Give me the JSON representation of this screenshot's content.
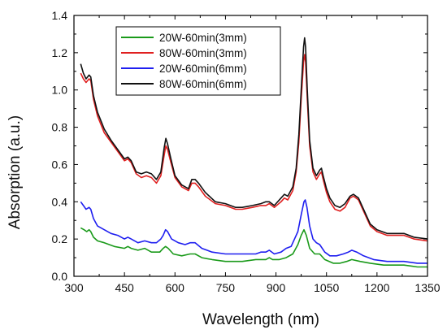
{
  "chart_data": {
    "type": "line",
    "title": "",
    "xlabel": "Wavelength (nm)",
    "ylabel": "Absorption (a.u.)",
    "xlim": [
      300,
      1350
    ],
    "ylim": [
      0.0,
      1.4
    ],
    "x_ticks": [
      300,
      450,
      600,
      750,
      900,
      1050,
      1200,
      1350
    ],
    "y_ticks": [
      0.0,
      0.2,
      0.4,
      0.6,
      0.8,
      1.0,
      1.2,
      1.4
    ],
    "x_tick_labels": [
      "300",
      "450",
      "600",
      "750",
      "900",
      "1050",
      "1200",
      "1350"
    ],
    "y_tick_labels": [
      "0.0",
      "0.2",
      "0.4",
      "0.6",
      "0.8",
      "1.0",
      "1.2",
      "1.4"
    ],
    "grid": false,
    "legend_position": "top-center",
    "series": [
      {
        "name": "20W-60min(3mm)",
        "color": "#1a9a1a",
        "points": [
          [
            320,
            0.26
          ],
          [
            330,
            0.25
          ],
          [
            338,
            0.24
          ],
          [
            345,
            0.25
          ],
          [
            350,
            0.24
          ],
          [
            358,
            0.21
          ],
          [
            370,
            0.19
          ],
          [
            390,
            0.18
          ],
          [
            420,
            0.16
          ],
          [
            450,
            0.15
          ],
          [
            460,
            0.16
          ],
          [
            470,
            0.15
          ],
          [
            490,
            0.14
          ],
          [
            510,
            0.15
          ],
          [
            530,
            0.13
          ],
          [
            555,
            0.13
          ],
          [
            565,
            0.15
          ],
          [
            572,
            0.16
          ],
          [
            580,
            0.15
          ],
          [
            595,
            0.12
          ],
          [
            620,
            0.11
          ],
          [
            645,
            0.12
          ],
          [
            660,
            0.12
          ],
          [
            680,
            0.1
          ],
          [
            710,
            0.09
          ],
          [
            750,
            0.08
          ],
          [
            800,
            0.08
          ],
          [
            840,
            0.09
          ],
          [
            855,
            0.09
          ],
          [
            870,
            0.09
          ],
          [
            880,
            0.1
          ],
          [
            890,
            0.09
          ],
          [
            910,
            0.09
          ],
          [
            930,
            0.1
          ],
          [
            950,
            0.12
          ],
          [
            965,
            0.17
          ],
          [
            975,
            0.22
          ],
          [
            983,
            0.25
          ],
          [
            990,
            0.22
          ],
          [
            1000,
            0.15
          ],
          [
            1015,
            0.12
          ],
          [
            1030,
            0.12
          ],
          [
            1045,
            0.09
          ],
          [
            1070,
            0.07
          ],
          [
            1090,
            0.07
          ],
          [
            1110,
            0.08
          ],
          [
            1125,
            0.09
          ],
          [
            1150,
            0.08
          ],
          [
            1180,
            0.07
          ],
          [
            1220,
            0.06
          ],
          [
            1280,
            0.06
          ],
          [
            1320,
            0.05
          ],
          [
            1350,
            0.05
          ]
        ]
      },
      {
        "name": "80W-60min(3mm)",
        "color": "#e02020",
        "points": [
          [
            320,
            1.09
          ],
          [
            328,
            1.06
          ],
          [
            336,
            1.04
          ],
          [
            345,
            1.06
          ],
          [
            350,
            1.05
          ],
          [
            358,
            0.95
          ],
          [
            370,
            0.86
          ],
          [
            390,
            0.77
          ],
          [
            410,
            0.72
          ],
          [
            430,
            0.67
          ],
          [
            450,
            0.62
          ],
          [
            460,
            0.63
          ],
          [
            470,
            0.61
          ],
          [
            485,
            0.55
          ],
          [
            500,
            0.53
          ],
          [
            515,
            0.54
          ],
          [
            530,
            0.53
          ],
          [
            545,
            0.5
          ],
          [
            558,
            0.54
          ],
          [
            568,
            0.65
          ],
          [
            573,
            0.7
          ],
          [
            578,
            0.68
          ],
          [
            588,
            0.61
          ],
          [
            600,
            0.53
          ],
          [
            620,
            0.48
          ],
          [
            640,
            0.46
          ],
          [
            650,
            0.5
          ],
          [
            660,
            0.5
          ],
          [
            670,
            0.48
          ],
          [
            690,
            0.43
          ],
          [
            720,
            0.39
          ],
          [
            750,
            0.38
          ],
          [
            780,
            0.36
          ],
          [
            800,
            0.36
          ],
          [
            830,
            0.37
          ],
          [
            855,
            0.38
          ],
          [
            870,
            0.38
          ],
          [
            880,
            0.39
          ],
          [
            895,
            0.37
          ],
          [
            915,
            0.4
          ],
          [
            925,
            0.42
          ],
          [
            935,
            0.41
          ],
          [
            950,
            0.46
          ],
          [
            960,
            0.56
          ],
          [
            968,
            0.72
          ],
          [
            975,
            0.95
          ],
          [
            982,
            1.15
          ],
          [
            985,
            1.19
          ],
          [
            988,
            1.15
          ],
          [
            993,
            0.95
          ],
          [
            1000,
            0.7
          ],
          [
            1010,
            0.56
          ],
          [
            1020,
            0.52
          ],
          [
            1030,
            0.55
          ],
          [
            1035,
            0.56
          ],
          [
            1040,
            0.52
          ],
          [
            1050,
            0.45
          ],
          [
            1060,
            0.4
          ],
          [
            1075,
            0.36
          ],
          [
            1090,
            0.35
          ],
          [
            1105,
            0.37
          ],
          [
            1120,
            0.42
          ],
          [
            1130,
            0.43
          ],
          [
            1145,
            0.41
          ],
          [
            1160,
            0.35
          ],
          [
            1180,
            0.27
          ],
          [
            1200,
            0.24
          ],
          [
            1230,
            0.22
          ],
          [
            1260,
            0.22
          ],
          [
            1280,
            0.22
          ],
          [
            1310,
            0.2
          ],
          [
            1350,
            0.19
          ]
        ]
      },
      {
        "name": "20W-60min(6mm)",
        "color": "#1f1ff0",
        "points": [
          [
            320,
            0.4
          ],
          [
            328,
            0.38
          ],
          [
            336,
            0.36
          ],
          [
            345,
            0.37
          ],
          [
            350,
            0.36
          ],
          [
            358,
            0.31
          ],
          [
            370,
            0.27
          ],
          [
            390,
            0.25
          ],
          [
            410,
            0.23
          ],
          [
            430,
            0.22
          ],
          [
            450,
            0.2
          ],
          [
            460,
            0.21
          ],
          [
            470,
            0.2
          ],
          [
            490,
            0.18
          ],
          [
            510,
            0.19
          ],
          [
            530,
            0.18
          ],
          [
            545,
            0.18
          ],
          [
            558,
            0.2
          ],
          [
            565,
            0.22
          ],
          [
            572,
            0.25
          ],
          [
            578,
            0.24
          ],
          [
            590,
            0.2
          ],
          [
            610,
            0.18
          ],
          [
            630,
            0.17
          ],
          [
            645,
            0.18
          ],
          [
            660,
            0.18
          ],
          [
            680,
            0.15
          ],
          [
            710,
            0.13
          ],
          [
            750,
            0.12
          ],
          [
            800,
            0.12
          ],
          [
            840,
            0.12
          ],
          [
            855,
            0.13
          ],
          [
            870,
            0.13
          ],
          [
            880,
            0.14
          ],
          [
            895,
            0.12
          ],
          [
            915,
            0.13
          ],
          [
            930,
            0.15
          ],
          [
            945,
            0.16
          ],
          [
            955,
            0.2
          ],
          [
            965,
            0.24
          ],
          [
            975,
            0.33
          ],
          [
            983,
            0.4
          ],
          [
            987,
            0.41
          ],
          [
            992,
            0.37
          ],
          [
            1000,
            0.27
          ],
          [
            1010,
            0.2
          ],
          [
            1020,
            0.18
          ],
          [
            1030,
            0.17
          ],
          [
            1045,
            0.13
          ],
          [
            1060,
            0.11
          ],
          [
            1080,
            0.11
          ],
          [
            1100,
            0.12
          ],
          [
            1115,
            0.13
          ],
          [
            1125,
            0.14
          ],
          [
            1140,
            0.13
          ],
          [
            1160,
            0.11
          ],
          [
            1190,
            0.09
          ],
          [
            1230,
            0.08
          ],
          [
            1280,
            0.08
          ],
          [
            1320,
            0.07
          ],
          [
            1350,
            0.07
          ]
        ]
      },
      {
        "name": "80W-60min(6mm)",
        "color": "#111111",
        "points": [
          [
            320,
            1.14
          ],
          [
            328,
            1.09
          ],
          [
            336,
            1.06
          ],
          [
            345,
            1.08
          ],
          [
            350,
            1.07
          ],
          [
            358,
            0.97
          ],
          [
            370,
            0.88
          ],
          [
            390,
            0.79
          ],
          [
            410,
            0.73
          ],
          [
            430,
            0.68
          ],
          [
            450,
            0.63
          ],
          [
            460,
            0.64
          ],
          [
            470,
            0.62
          ],
          [
            485,
            0.56
          ],
          [
            500,
            0.55
          ],
          [
            515,
            0.56
          ],
          [
            530,
            0.55
          ],
          [
            545,
            0.52
          ],
          [
            558,
            0.56
          ],
          [
            568,
            0.69
          ],
          [
            573,
            0.74
          ],
          [
            578,
            0.71
          ],
          [
            588,
            0.63
          ],
          [
            600,
            0.54
          ],
          [
            620,
            0.49
          ],
          [
            640,
            0.47
          ],
          [
            650,
            0.52
          ],
          [
            660,
            0.52
          ],
          [
            670,
            0.5
          ],
          [
            690,
            0.45
          ],
          [
            720,
            0.4
          ],
          [
            750,
            0.39
          ],
          [
            780,
            0.37
          ],
          [
            800,
            0.37
          ],
          [
            830,
            0.38
          ],
          [
            855,
            0.39
          ],
          [
            870,
            0.4
          ],
          [
            880,
            0.4
          ],
          [
            895,
            0.38
          ],
          [
            915,
            0.42
          ],
          [
            925,
            0.44
          ],
          [
            935,
            0.43
          ],
          [
            950,
            0.48
          ],
          [
            960,
            0.58
          ],
          [
            968,
            0.76
          ],
          [
            975,
            1.0
          ],
          [
            982,
            1.23
          ],
          [
            985,
            1.28
          ],
          [
            988,
            1.23
          ],
          [
            993,
            1.0
          ],
          [
            1000,
            0.73
          ],
          [
            1010,
            0.58
          ],
          [
            1020,
            0.54
          ],
          [
            1030,
            0.57
          ],
          [
            1035,
            0.58
          ],
          [
            1040,
            0.54
          ],
          [
            1050,
            0.47
          ],
          [
            1060,
            0.42
          ],
          [
            1075,
            0.38
          ],
          [
            1090,
            0.37
          ],
          [
            1105,
            0.39
          ],
          [
            1120,
            0.43
          ],
          [
            1130,
            0.44
          ],
          [
            1145,
            0.42
          ],
          [
            1160,
            0.36
          ],
          [
            1180,
            0.28
          ],
          [
            1200,
            0.25
          ],
          [
            1230,
            0.23
          ],
          [
            1260,
            0.23
          ],
          [
            1280,
            0.23
          ],
          [
            1310,
            0.21
          ],
          [
            1350,
            0.2
          ]
        ]
      }
    ]
  }
}
